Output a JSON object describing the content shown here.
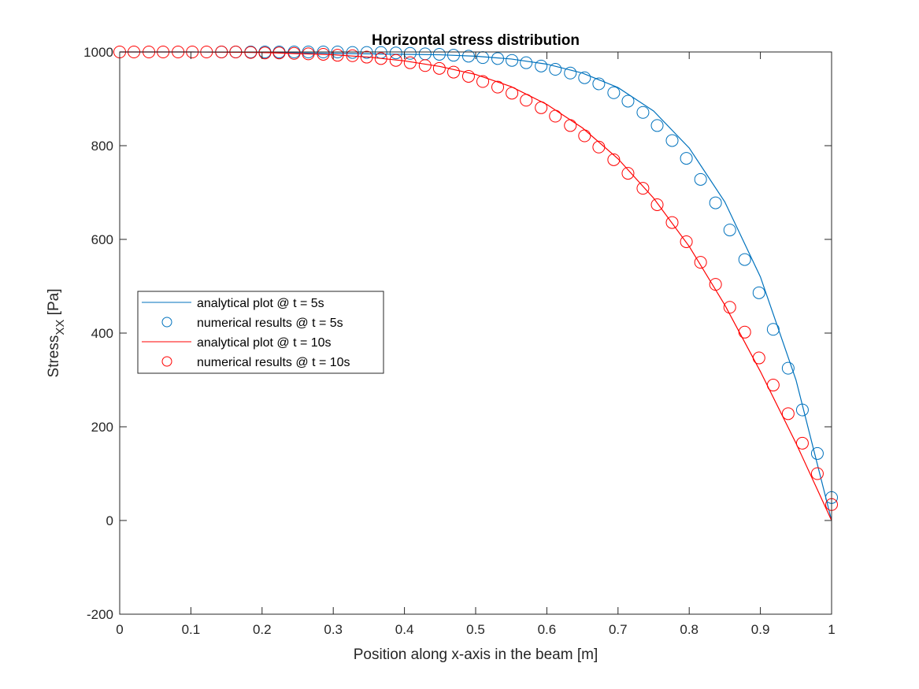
{
  "chart_data": {
    "type": "line",
    "title": "Horizontal stress distribution",
    "xlabel": "Position along x-axis in the beam [m]",
    "ylabel_main": "Stress",
    "ylabel_sub": "XX",
    "ylabel_unit": " [Pa]",
    "xlim": [
      0,
      1
    ],
    "ylim": [
      -200,
      1000
    ],
    "xticks": [
      "0",
      "0.1",
      "0.2",
      "0.3",
      "0.4",
      "0.5",
      "0.6",
      "0.7",
      "0.8",
      "0.9",
      "1"
    ],
    "yticks": [
      "-200",
      "0",
      "200",
      "400",
      "600",
      "800",
      "1000"
    ],
    "grid": false,
    "legend_position": "middle-left",
    "colors": {
      "blue": "#0072BD",
      "red": "#FF0000"
    },
    "series": [
      {
        "name": "analytical plot @ t = 5s",
        "style": "line",
        "color": "#0072BD",
        "x": [
          0,
          0.1,
          0.2,
          0.3,
          0.35,
          0.4,
          0.45,
          0.5,
          0.55,
          0.6,
          0.65,
          0.7,
          0.75,
          0.8,
          0.85,
          0.9,
          0.95,
          1.0
        ],
        "y": [
          1000,
          1000,
          999,
          997,
          996,
          995,
          994,
          991,
          985,
          974,
          955,
          924,
          874,
          795,
          680,
          520,
          300,
          0
        ]
      },
      {
        "name": "numerical results @ t = 5s",
        "style": "markers",
        "color": "#0072BD",
        "x": [
          0.143,
          0.163,
          0.184,
          0.204,
          0.224,
          0.245,
          0.265,
          0.286,
          0.306,
          0.327,
          0.347,
          0.367,
          0.388,
          0.408,
          0.429,
          0.449,
          0.469,
          0.49,
          0.51,
          0.531,
          0.551,
          0.571,
          0.592,
          0.612,
          0.633,
          0.653,
          0.673,
          0.694,
          0.714,
          0.735,
          0.755,
          0.776,
          0.796,
          0.816,
          0.837,
          0.857,
          0.878,
          0.898,
          0.918,
          0.939,
          0.959,
          0.98,
          1.0
        ],
        "y": [
          1000,
          1000,
          1000,
          1000,
          1000,
          1000,
          1000,
          1000,
          1000,
          999,
          999,
          999,
          998,
          997,
          996,
          995,
          993,
          991,
          988,
          986,
          982,
          977,
          970,
          963,
          955,
          945,
          932,
          913,
          895,
          871,
          843,
          811,
          773,
          728,
          678,
          620,
          557,
          486,
          408,
          325,
          236,
          143,
          49
        ]
      },
      {
        "name": "analytical plot @ t = 10s",
        "style": "line",
        "color": "#FF0000",
        "x": [
          0,
          0.1,
          0.2,
          0.3,
          0.35,
          0.4,
          0.45,
          0.5,
          0.55,
          0.6,
          0.65,
          0.7,
          0.75,
          0.8,
          0.85,
          0.9,
          0.95,
          1.0
        ],
        "y": [
          1000,
          1000,
          999,
          994,
          989,
          981,
          969,
          952,
          926,
          888,
          838,
          772,
          688,
          585,
          460,
          318,
          165,
          0
        ]
      },
      {
        "name": "numerical results @ t = 10s",
        "style": "markers",
        "color": "#FF0000",
        "x": [
          0,
          0.02,
          0.041,
          0.061,
          0.082,
          0.102,
          0.122,
          0.143,
          0.163,
          0.184,
          0.204,
          0.224,
          0.245,
          0.265,
          0.286,
          0.306,
          0.327,
          0.347,
          0.367,
          0.388,
          0.408,
          0.429,
          0.449,
          0.469,
          0.49,
          0.51,
          0.531,
          0.551,
          0.571,
          0.592,
          0.612,
          0.633,
          0.653,
          0.673,
          0.694,
          0.714,
          0.735,
          0.755,
          0.776,
          0.796,
          0.816,
          0.837,
          0.857,
          0.878,
          0.898,
          0.918,
          0.939,
          0.959,
          0.98,
          1.0
        ],
        "y": [
          1000,
          1000,
          1000,
          1000,
          1000,
          1000,
          1000,
          1000,
          1000,
          999,
          998,
          998,
          997,
          996,
          995,
          993,
          992,
          989,
          986,
          982,
          977,
          971,
          965,
          957,
          948,
          937,
          925,
          912,
          897,
          881,
          863,
          843,
          821,
          797,
          770,
          741,
          709,
          674,
          636,
          595,
          551,
          504,
          455,
          402,
          347,
          289,
          228,
          165,
          100,
          34
        ]
      }
    ]
  }
}
